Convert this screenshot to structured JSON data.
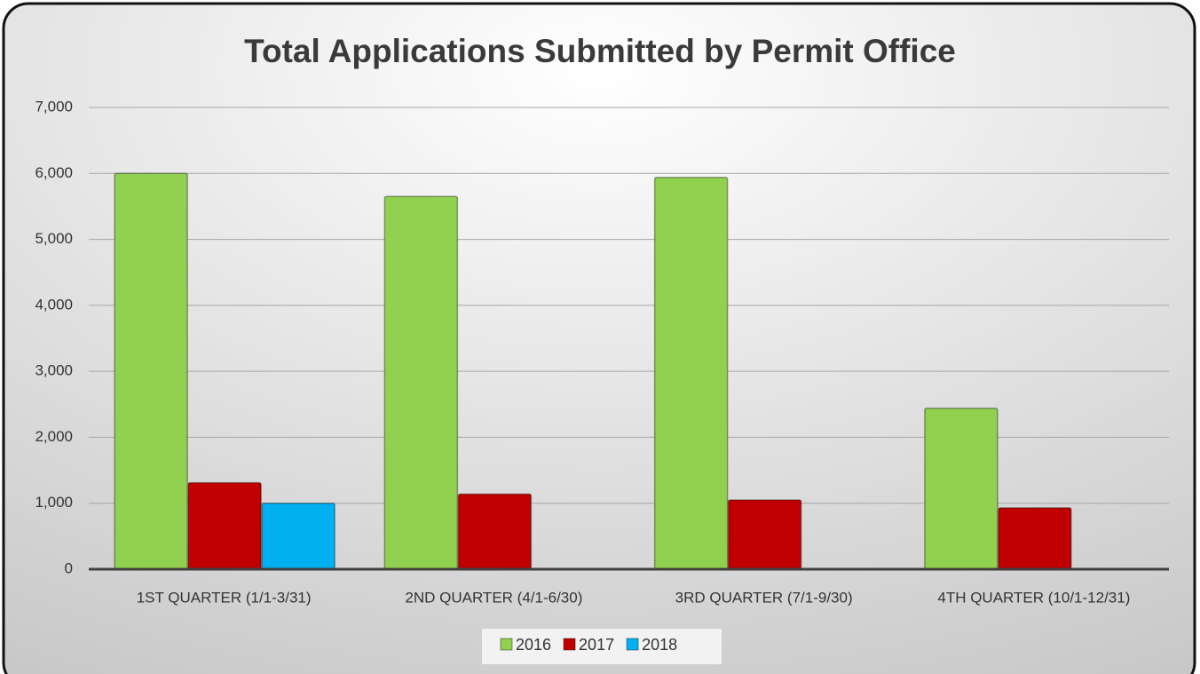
{
  "chart_data": {
    "type": "bar",
    "title": "Total Applications Submitted by Permit Office",
    "categories": [
      "1ST QUARTER (1/1-3/31)",
      "2ND QUARTER (4/1-6/30)",
      "3RD QUARTER (7/1-9/30)",
      "4TH QUARTER (10/1-12/31)"
    ],
    "series": [
      {
        "name": "2016",
        "color": "#92d050",
        "values": [
          6000,
          5650,
          5940,
          2440
        ]
      },
      {
        "name": "2017",
        "color": "#c00000",
        "values": [
          1310,
          1140,
          1050,
          930
        ]
      },
      {
        "name": "2018",
        "color": "#00b0f0",
        "values": [
          1000,
          null,
          null,
          null
        ]
      }
    ],
    "ylim": [
      0,
      7000
    ],
    "yticks": [
      0,
      {
        "value": 1000,
        "label": "1,000"
      },
      {
        "value": 2000,
        "label": "2,000"
      },
      {
        "value": 3000,
        "label": "3,000"
      },
      {
        "value": 4000,
        "label": "4,000"
      },
      {
        "value": 5000,
        "label": "5,000"
      },
      {
        "value": 6000,
        "label": "6,000"
      },
      {
        "value": 7000,
        "label": "7,000"
      }
    ],
    "grid": true,
    "legend": "bottom"
  }
}
